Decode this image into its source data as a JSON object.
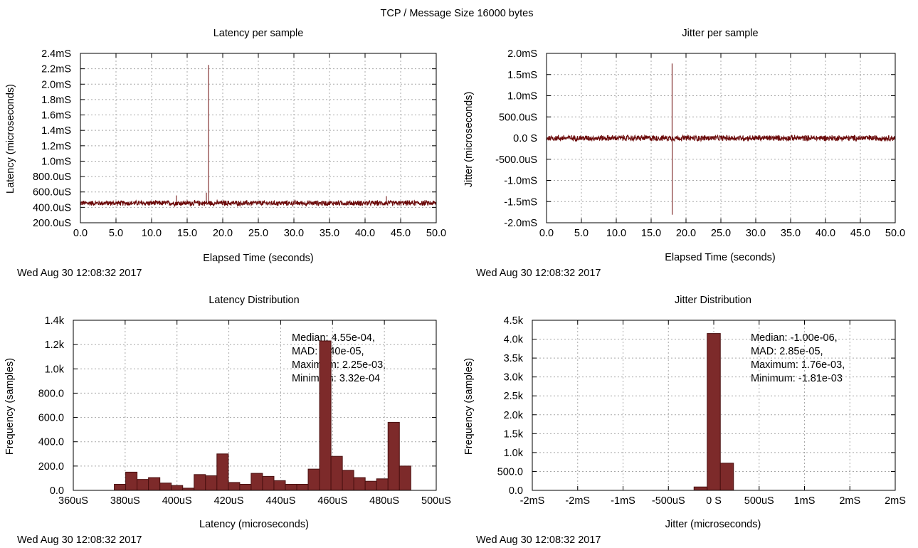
{
  "page_title": "TCP / Message Size 16000 bytes",
  "colors": {
    "series": "#6b0a0a",
    "bar_fill": "#7d2a2a",
    "bar_stroke": "#4a1010",
    "grid": "#a8a8a8",
    "axis": "#000000"
  },
  "chart_data": [
    {
      "id": "latency-per-sample",
      "type": "line",
      "title": "Latency per sample",
      "xlabel": "Elapsed Time (seconds)",
      "ylabel": "Latency (microseconds)",
      "timestamp": "Wed Aug 30 12:08:32 2017",
      "xlim": [
        0,
        50
      ],
      "ylim": [
        200,
        2400
      ],
      "x_ticks": [
        0,
        5,
        10,
        15,
        20,
        25,
        30,
        35,
        40,
        45,
        50
      ],
      "x_tick_labels": [
        "0.0",
        "5.0",
        "10.0",
        "15.0",
        "20.0",
        "25.0",
        "30.0",
        "35.0",
        "40.0",
        "45.0",
        "50.0"
      ],
      "y_ticks": [
        200,
        400,
        600,
        800,
        1000,
        1200,
        1400,
        1600,
        1800,
        2000,
        2200,
        2400
      ],
      "y_tick_labels": [
        "200.0uS",
        "400.0uS",
        "600.0uS",
        "800.0uS",
        "1.0mS",
        "1.2mS",
        "1.4mS",
        "1.6mS",
        "1.8mS",
        "2.0mS",
        "2.2mS",
        "2.4mS"
      ],
      "baseline": 455,
      "band": [
        415,
        495
      ],
      "spikes": [
        {
          "x": 18.0,
          "y": 2250
        },
        {
          "x": 17.7,
          "y": 590
        },
        {
          "x": 13.5,
          "y": 555
        },
        {
          "x": 43.0,
          "y": 545
        }
      ]
    },
    {
      "id": "jitter-per-sample",
      "type": "line",
      "title": "Jitter per sample",
      "xlabel": "Elapsed Time (seconds)",
      "ylabel": "Jitter (microseconds)",
      "timestamp": "Wed Aug 30 12:08:32 2017",
      "xlim": [
        0,
        50
      ],
      "ylim": [
        -2000,
        2000
      ],
      "x_ticks": [
        0,
        5,
        10,
        15,
        20,
        25,
        30,
        35,
        40,
        45,
        50
      ],
      "x_tick_labels": [
        "0.0",
        "5.0",
        "10.0",
        "15.0",
        "20.0",
        "25.0",
        "30.0",
        "35.0",
        "40.0",
        "45.0",
        "50.0"
      ],
      "y_ticks": [
        -2000,
        -1500,
        -1000,
        -500,
        0,
        500,
        1000,
        1500,
        2000
      ],
      "y_tick_labels": [
        "-2.0mS",
        "-1.5mS",
        "-1.0mS",
        "-500.0uS",
        "0.0 S",
        "500.0uS",
        "1.0mS",
        "1.5mS",
        "2.0mS"
      ],
      "baseline": 0,
      "band": [
        -80,
        80
      ],
      "spikes": [
        {
          "x": 18.0,
          "y": 1760
        },
        {
          "x": 18.02,
          "y": -1810
        }
      ]
    },
    {
      "id": "latency-distribution",
      "type": "bar",
      "title": "Latency Distribution",
      "xlabel": "Latency (microseconds)",
      "ylabel": "Frequency (samples)",
      "timestamp": "Wed Aug 30 12:08:32 2017",
      "xlim": [
        360,
        500
      ],
      "ylim": [
        0,
        1400
      ],
      "x_ticks": [
        360,
        380,
        400,
        420,
        440,
        460,
        480,
        500
      ],
      "x_tick_labels": [
        "360uS",
        "380uS",
        "400uS",
        "420uS",
        "440uS",
        "460uS",
        "480uS",
        "500uS"
      ],
      "y_ticks": [
        0,
        200,
        400,
        600,
        800,
        1000,
        1200,
        1400
      ],
      "y_tick_labels": [
        "0.0",
        "200.0",
        "400.0",
        "600.0",
        "800.0",
        "1.0k",
        "1.2k",
        "1.4k"
      ],
      "bin_width": 4.4,
      "bins": [
        {
          "x": 378,
          "y": 50
        },
        {
          "x": 382.4,
          "y": 150
        },
        {
          "x": 386.8,
          "y": 90
        },
        {
          "x": 391.2,
          "y": 105
        },
        {
          "x": 395.6,
          "y": 60
        },
        {
          "x": 400.0,
          "y": 40
        },
        {
          "x": 404.4,
          "y": 18
        },
        {
          "x": 408.8,
          "y": 130
        },
        {
          "x": 413.2,
          "y": 120
        },
        {
          "x": 417.6,
          "y": 300
        },
        {
          "x": 422.0,
          "y": 65
        },
        {
          "x": 426.4,
          "y": 50
        },
        {
          "x": 430.8,
          "y": 140
        },
        {
          "x": 435.2,
          "y": 115
        },
        {
          "x": 439.6,
          "y": 80
        },
        {
          "x": 444.0,
          "y": 50
        },
        {
          "x": 448.4,
          "y": 50
        },
        {
          "x": 452.8,
          "y": 175
        },
        {
          "x": 457.2,
          "y": 1230
        },
        {
          "x": 461.6,
          "y": 280
        },
        {
          "x": 466.0,
          "y": 165
        },
        {
          "x": 470.4,
          "y": 105
        },
        {
          "x": 474.8,
          "y": 75
        },
        {
          "x": 479.2,
          "y": 95
        },
        {
          "x": 483.6,
          "y": 560
        },
        {
          "x": 488.0,
          "y": 200
        }
      ],
      "stats": [
        "Median: 4.55e-04,",
        "MAD: 2.40e-05,",
        "Maximum: 2.25e-03,",
        "Minimum: 3.32e-04"
      ]
    },
    {
      "id": "jitter-distribution",
      "type": "bar",
      "title": "Jitter Distribution",
      "xlabel": "Jitter (microseconds)",
      "ylabel": "Frequency (samples)",
      "timestamp": "Wed Aug 30 12:08:32 2017",
      "xlim": [
        -2000,
        2000
      ],
      "ylim": [
        0,
        4500
      ],
      "x_ticks": [
        -2000,
        -1500,
        -1000,
        -500,
        0,
        500,
        1000,
        1500,
        2000
      ],
      "x_tick_labels": [
        "-2mS",
        "-2mS",
        "-1mS",
        "-500uS",
        "0 S",
        "500uS",
        "1mS",
        "2mS",
        "2mS"
      ],
      "y_ticks": [
        0,
        500,
        1000,
        1500,
        2000,
        2500,
        3000,
        3500,
        4000,
        4500
      ],
      "y_tick_labels": [
        "0.0",
        "500.0",
        "1.0k",
        "1.5k",
        "2.0k",
        "2.5k",
        "3.0k",
        "3.5k",
        "4.0k",
        "4.5k"
      ],
      "bin_width": 145,
      "bins": [
        {
          "x": -145,
          "y": 90
        },
        {
          "x": 0,
          "y": 4150
        },
        {
          "x": 145,
          "y": 720
        }
      ],
      "stats": [
        "Median: -1.00e-06,",
        "MAD: 2.85e-05,",
        "Maximum: 1.76e-03,",
        "Minimum: -1.81e-03"
      ]
    }
  ]
}
